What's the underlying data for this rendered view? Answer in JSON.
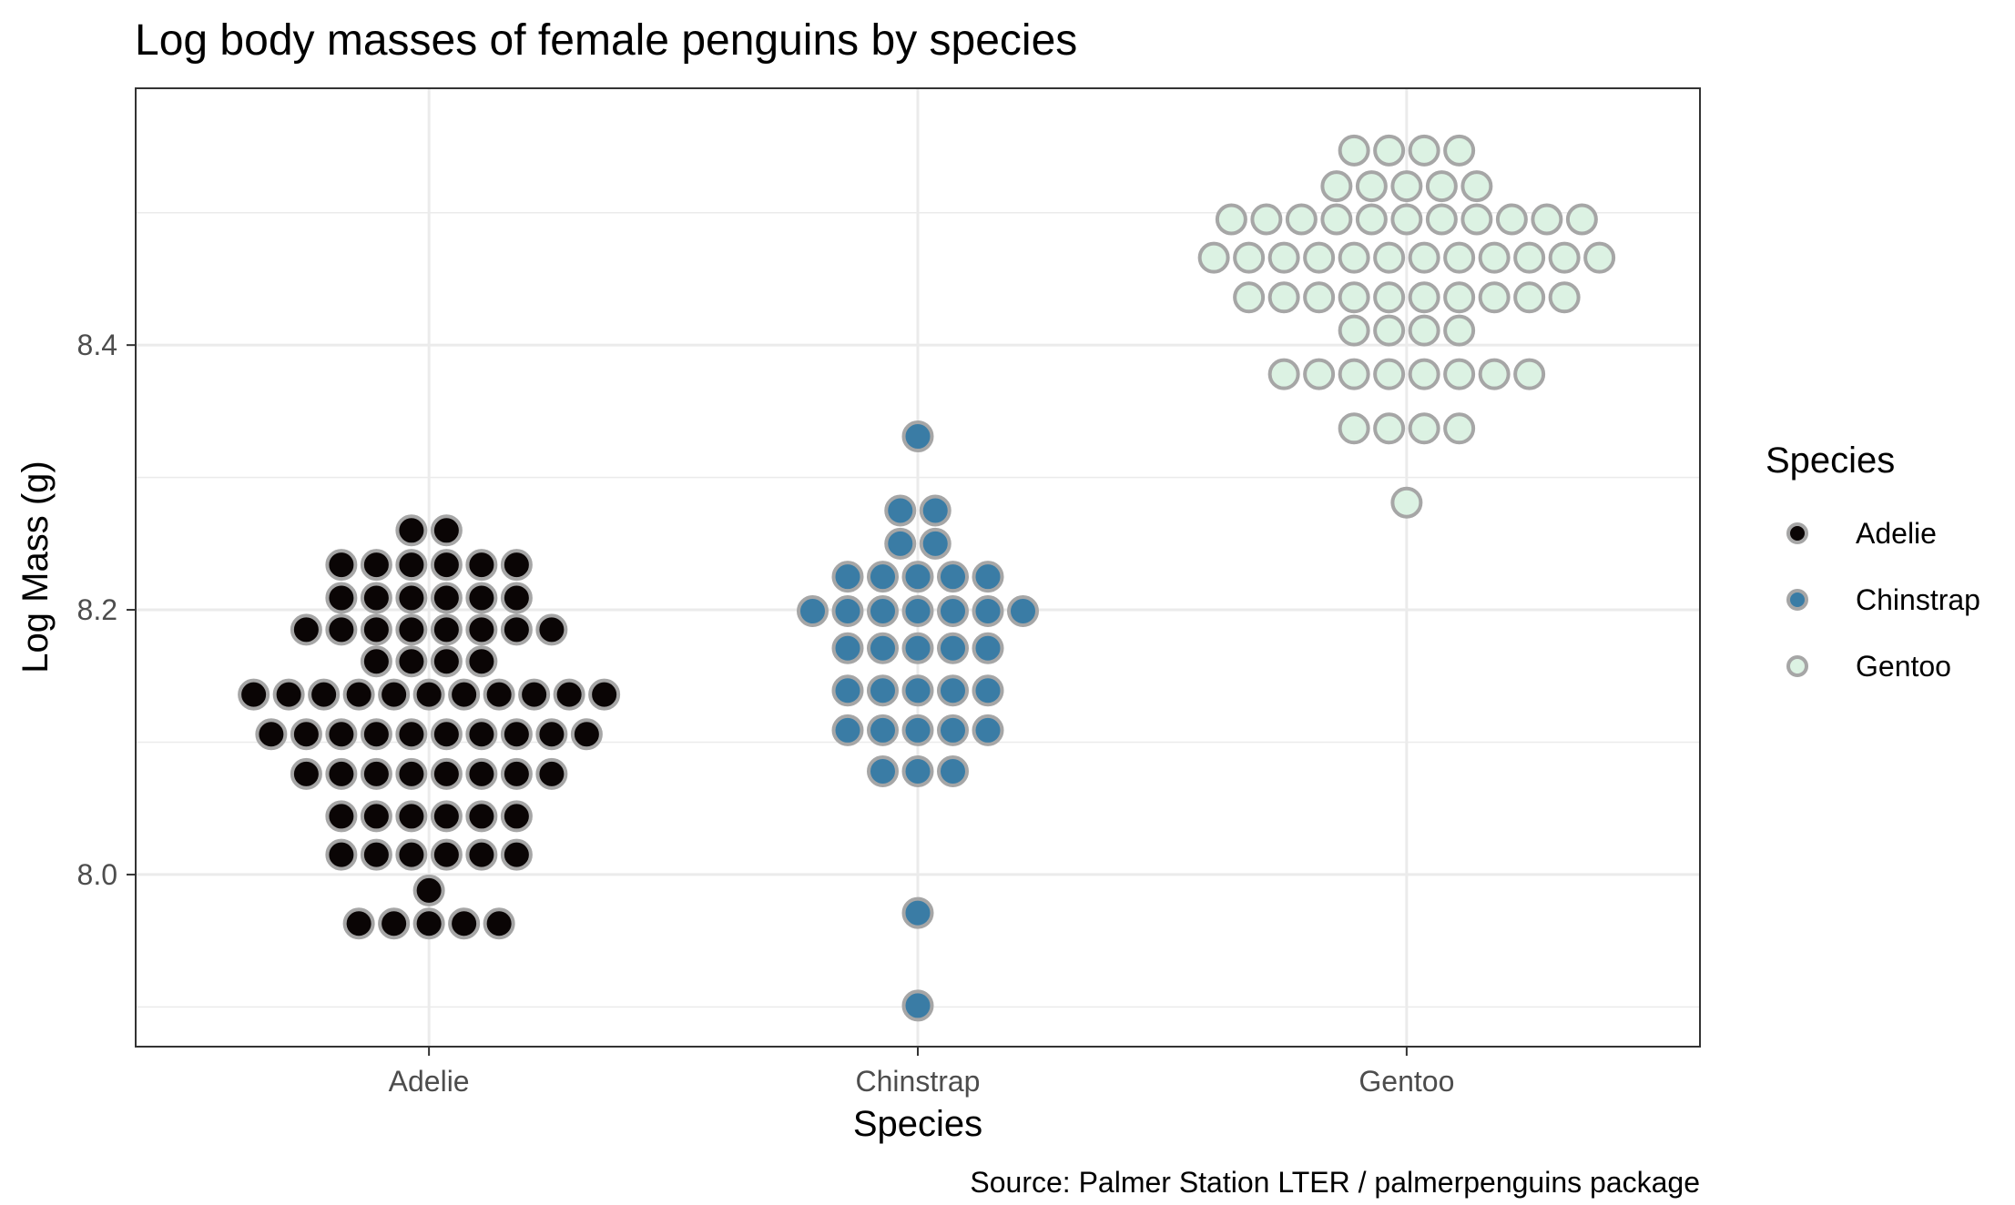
{
  "chart_data": {
    "type": "scatter",
    "subtype": "beeswarm",
    "title": "Log body masses of female penguins by species",
    "xlabel": "Species",
    "ylabel": "Log Mass (g)",
    "caption": "Source: Palmer Station LTER / palmerpenguins package",
    "categories": [
      "Adelie",
      "Chinstrap",
      "Gentoo"
    ],
    "y_ticks": [
      "8.0",
      "8.2",
      "8.4"
    ],
    "ylim": [
      7.87,
      8.594
    ],
    "grid": true,
    "legend": {
      "title": "Species",
      "position": "right",
      "entries": [
        "Adelie",
        "Chinstrap",
        "Gentoo"
      ]
    },
    "colors": {
      "Adelie": "#0a0505",
      "Chinstrap": "#3a7ca5",
      "Gentoo": "#dcf2e3",
      "point_outline": "#a6a6a6"
    },
    "series": [
      {
        "name": "Adelie",
        "points": [
          {
            "y": 8.26,
            "count": 2
          },
          {
            "y": 8.234,
            "count": 6
          },
          {
            "y": 8.209,
            "count": 6
          },
          {
            "y": 8.185,
            "count": 8
          },
          {
            "y": 8.161,
            "count": 4
          },
          {
            "y": 8.136,
            "count": 11
          },
          {
            "y": 8.106,
            "count": 10
          },
          {
            "y": 8.076,
            "count": 8
          },
          {
            "y": 8.044,
            "count": 6
          },
          {
            "y": 8.015,
            "count": 6
          },
          {
            "y": 7.988,
            "count": 1
          },
          {
            "y": 7.963,
            "count": 5
          }
        ]
      },
      {
        "name": "Chinstrap",
        "points": [
          {
            "y": 8.331,
            "count": 1
          },
          {
            "y": 8.275,
            "count": 2
          },
          {
            "y": 8.25,
            "count": 2
          },
          {
            "y": 8.225,
            "count": 5
          },
          {
            "y": 8.199,
            "count": 7
          },
          {
            "y": 8.171,
            "count": 5
          },
          {
            "y": 8.139,
            "count": 5
          },
          {
            "y": 8.109,
            "count": 5
          },
          {
            "y": 8.078,
            "count": 3
          },
          {
            "y": 7.971,
            "count": 1
          },
          {
            "y": 7.901,
            "count": 1
          }
        ]
      },
      {
        "name": "Gentoo",
        "points": [
          {
            "y": 8.547,
            "count": 4
          },
          {
            "y": 8.52,
            "count": 5
          },
          {
            "y": 8.495,
            "count": 11
          },
          {
            "y": 8.466,
            "count": 12
          },
          {
            "y": 8.436,
            "count": 10
          },
          {
            "y": 8.411,
            "count": 4
          },
          {
            "y": 8.378,
            "count": 8
          },
          {
            "y": 8.337,
            "count": 4
          },
          {
            "y": 8.281,
            "count": 1
          }
        ]
      }
    ]
  }
}
